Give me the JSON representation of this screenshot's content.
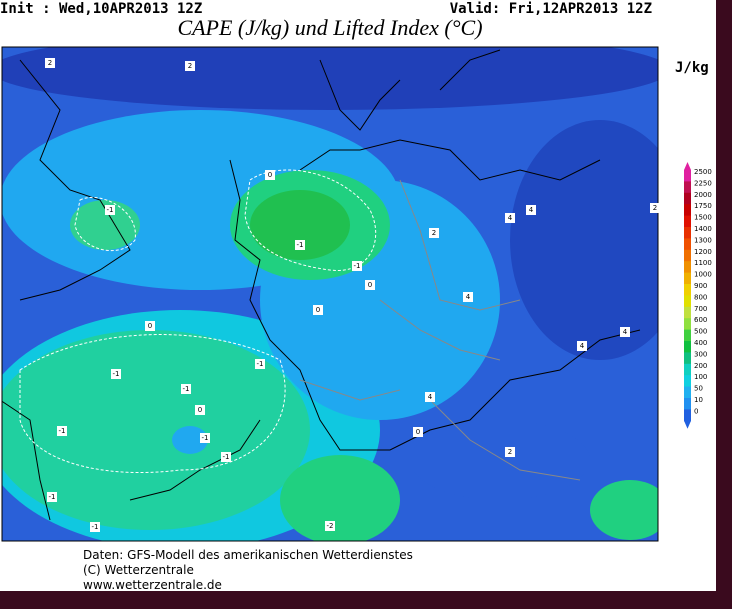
{
  "header": {
    "init": "Init : Wed,10APR2013 12Z",
    "valid": "Valid: Fri,12APR2013 12Z",
    "title": "CAPE (J/kg) und Lifted Index (°C)"
  },
  "legend": {
    "unit": "J/kg",
    "levels": [
      2500,
      2250,
      2000,
      1750,
      1500,
      1400,
      1300,
      1200,
      1100,
      1000,
      900,
      800,
      700,
      600,
      500,
      400,
      300,
      200,
      100,
      50,
      10,
      0
    ],
    "colors": [
      "#e020a0",
      "#c01050",
      "#b00020",
      "#c80000",
      "#e01000",
      "#e83000",
      "#f05000",
      "#f07000",
      "#f09000",
      "#f0b000",
      "#f0d000",
      "#e0e000",
      "#c0e040",
      "#90e040",
      "#40d040",
      "#10c040",
      "#10c080",
      "#10d0c0",
      "#10d0e0",
      "#20b0f0",
      "#2090f0",
      "#2060e0"
    ]
  },
  "contour_labels": [
    "2",
    "2",
    "0",
    "-1",
    "-1",
    "-1",
    "0",
    "2",
    "4",
    "4",
    "4",
    "4",
    "0",
    "0",
    "-1",
    "-1",
    "-1",
    "0",
    "-1",
    "-1",
    "-1",
    "4",
    "2",
    "0",
    "-1",
    "-2",
    "-1",
    "4",
    "2"
  ],
  "footer": {
    "line1": "Daten: GFS-Modell des amerikanischen Wetterdienstes",
    "line2": "(C) Wetterzentrale",
    "line3": "www.wetterzentrale.de"
  }
}
